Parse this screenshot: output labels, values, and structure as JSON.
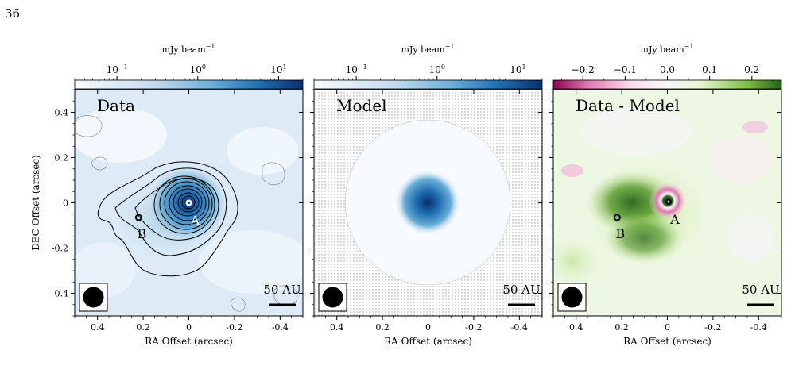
{
  "page_number": "36",
  "colorbar_label": "mJy beam",
  "colorbar_label_exp": "−1",
  "chart_data": [
    {
      "type": "heatmap",
      "title": "Data",
      "xlabel": "RA Offset (arcsec)",
      "ylabel": "DEC Offset (arcsec)",
      "xlim": [
        0.5,
        -0.5
      ],
      "ylim": [
        -0.5,
        0.5
      ],
      "x_ticks": [
        0.4,
        0.2,
        0,
        -0.2,
        -0.4
      ],
      "x_tick_labels": [
        "0.4",
        "0.2",
        "0",
        "-0.2",
        "-0.4"
      ],
      "y_ticks": [
        0.4,
        0.2,
        0,
        -0.2,
        -0.4
      ],
      "y_tick_labels": [
        "0.4",
        "0.2",
        "0",
        "-0.2",
        "-0.4"
      ],
      "colorbar": {
        "scale": "log",
        "colormap": "Blues",
        "ticks": [
          0.1,
          1,
          10
        ],
        "tick_labels": [
          "10",
          "10",
          "10"
        ],
        "tick_exponents": [
          "−1",
          "0",
          "1"
        ],
        "range": [
          0.03,
          20
        ]
      },
      "sources": [
        {
          "name": "A",
          "x": 0.0,
          "y": 0.0
        },
        {
          "name": "B",
          "x": 0.22,
          "y": -0.065
        }
      ],
      "beam_inset": true,
      "scale_bar_label": "50 AU",
      "contours": true
    },
    {
      "type": "heatmap",
      "title": "Model",
      "xlabel": "RA Offset (arcsec)",
      "xlim": [
        0.5,
        -0.5
      ],
      "ylim": [
        -0.5,
        0.5
      ],
      "x_ticks": [
        0.4,
        0.2,
        0,
        -0.2,
        -0.4
      ],
      "x_tick_labels": [
        "0.4",
        "0.2",
        "0",
        "-0.2",
        "-0.4"
      ],
      "colorbar": {
        "scale": "log",
        "colormap": "Blues",
        "ticks": [
          0.1,
          1,
          10
        ],
        "tick_labels": [
          "10",
          "10",
          "10"
        ],
        "tick_exponents": [
          "−1",
          "0",
          "1"
        ],
        "range": [
          0.03,
          20
        ]
      },
      "model_disk_radius": 0.36,
      "beam_inset": true,
      "scale_bar_label": "50 AU"
    },
    {
      "type": "heatmap",
      "title": "Data - Model",
      "xlabel": "RA Offset (arcsec)",
      "xlim": [
        0.5,
        -0.5
      ],
      "ylim": [
        -0.5,
        0.5
      ],
      "x_ticks": [
        0.4,
        0.2,
        0,
        -0.2,
        -0.4
      ],
      "x_tick_labels": [
        "0.4",
        "0.2",
        "0",
        "-0.2",
        "-0.4"
      ],
      "colorbar": {
        "scale": "linear",
        "colormap": "PiYG",
        "ticks": [
          -0.2,
          -0.1,
          0.0,
          0.1,
          0.2
        ],
        "tick_labels": [
          "−0.2",
          "−0.1",
          "0.0",
          "0.1",
          "0.2"
        ],
        "range": [
          -0.27,
          0.27
        ]
      },
      "sources": [
        {
          "name": "A",
          "x": -0.005,
          "y": 0.005
        },
        {
          "name": "B",
          "x": 0.22,
          "y": -0.065
        }
      ],
      "beam_inset": true,
      "scale_bar_label": "50 AU"
    }
  ],
  "colors": {
    "blue_dark": "#08306b",
    "blue_mid": "#4f8fc6",
    "blue_light": "#deebf7",
    "pink": "#c51b7d",
    "green_dark": "#276419",
    "green_mid": "#7fbc41",
    "green_light": "#e6f5d0"
  }
}
